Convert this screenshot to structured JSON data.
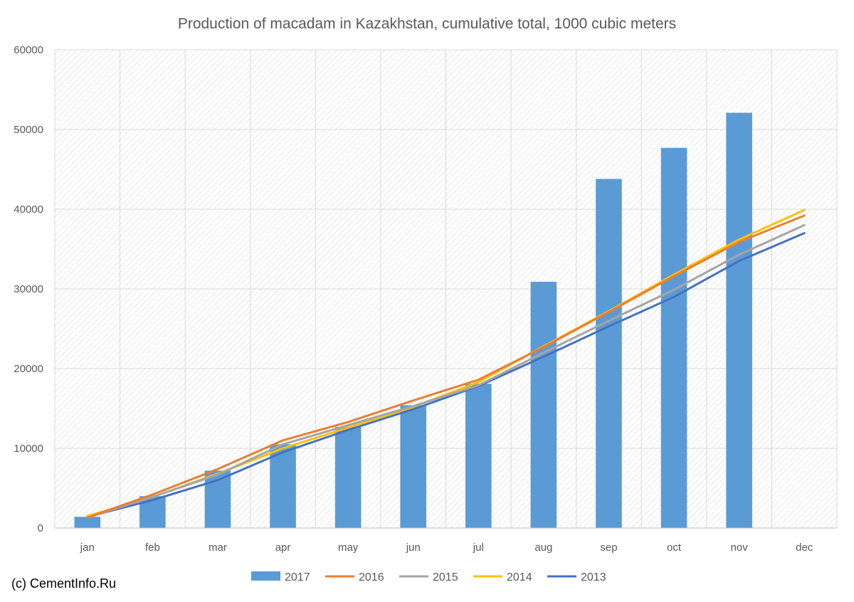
{
  "chart_data": {
    "type": "bar",
    "title": "Production of macadam in Kazakhstan, cumulative total, 1000 cubic meters",
    "xlabel": "",
    "ylabel": "",
    "categories": [
      "jan",
      "feb",
      "mar",
      "apr",
      "may",
      "jun",
      "jul",
      "aug",
      "sep",
      "oct",
      "nov",
      "dec"
    ],
    "ylim": [
      0,
      60000
    ],
    "yticks": [
      0,
      10000,
      20000,
      30000,
      40000,
      50000,
      60000
    ],
    "grid": true,
    "legend_position": "bottom",
    "series": [
      {
        "name": "2017",
        "kind": "bar",
        "color": "#5B9BD5",
        "values": [
          1400,
          4000,
          7200,
          10500,
          12700,
          15400,
          18100,
          30900,
          43800,
          47700,
          52100,
          null
        ]
      },
      {
        "name": "2016",
        "kind": "line",
        "color": "#ED7D31",
        "values": [
          1300,
          4200,
          7400,
          11000,
          13300,
          16000,
          18600,
          22700,
          27100,
          31600,
          35900,
          39200
        ]
      },
      {
        "name": "2015",
        "kind": "line",
        "color": "#A5A5A5",
        "values": [
          1300,
          3900,
          6700,
          10500,
          12900,
          15300,
          17900,
          22000,
          26000,
          29900,
          34300,
          38000
        ]
      },
      {
        "name": "2014",
        "kind": "line",
        "color": "#FFC000",
        "values": [
          1500,
          3900,
          6800,
          10000,
          12600,
          15200,
          18300,
          22800,
          27200,
          31800,
          36200,
          39900
        ]
      },
      {
        "name": "2013",
        "kind": "line",
        "color": "#4472C4",
        "values": [
          1400,
          3500,
          6000,
          9500,
          12300,
          14900,
          17800,
          21500,
          25300,
          29000,
          33500,
          37000
        ]
      }
    ],
    "credit": "(c) CementInfo.Ru"
  }
}
